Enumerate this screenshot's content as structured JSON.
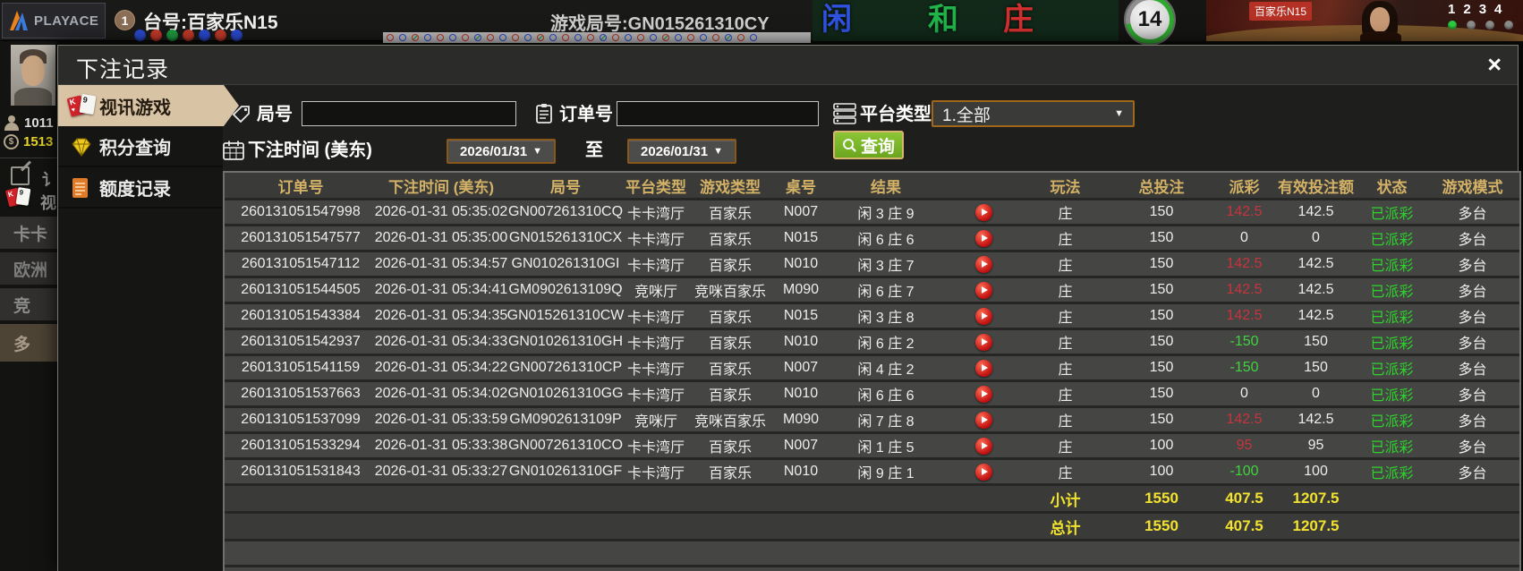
{
  "top_bar": {
    "brand": "PLAYACE",
    "round_badge": "1",
    "table_label": "台号:百家乐N15",
    "game_round_label": "游戏局号:GN015261310CY",
    "bet_zones": [
      {
        "label": "闲",
        "color": "#2f52e0"
      },
      {
        "label": "和",
        "color": "#21b24a"
      },
      {
        "label": "庄",
        "color": "#d32f2f"
      }
    ],
    "timer_value": "14",
    "video": {
      "table_tag": "百家乐N15",
      "seat_numbers": [
        "1",
        "2",
        "3",
        "4"
      ]
    }
  },
  "side_strip": {
    "user_id": "1011",
    "balance": "1513",
    "note_fragment": "讠",
    "video_menu_fragment": "视",
    "menu_items": [
      "卡卡",
      "欧洲",
      "竞",
      "多"
    ]
  },
  "icons": {
    "card_face_1": "K",
    "card_suit_1": "♥",
    "card_face_2": "9",
    "currency_glyph": "$",
    "caret_glyph": "▼"
  },
  "modal": {
    "title": "下注记录",
    "close_glyph": "×",
    "nav": [
      {
        "label": "视讯游戏",
        "icon": "cards-icon",
        "active": true
      },
      {
        "label": "积分查询",
        "icon": "diamond-icon",
        "active": false
      },
      {
        "label": "额度记录",
        "icon": "document-icon",
        "active": false
      }
    ],
    "filters": {
      "round_no_label": "局号",
      "round_no_value": "",
      "order_no_label": "订单号",
      "order_no_value": "",
      "platform_label": "平台类型",
      "platform_value": "1.全部",
      "bet_time_label": "下注时间 (美东)",
      "date_from": "2026/01/31",
      "to_label": "至",
      "date_to": "2026/01/31",
      "search_label": "查询"
    },
    "table": {
      "headers": [
        "订单号",
        "下注时间 (美东)",
        "局号",
        "平台类型",
        "游戏类型",
        "桌号",
        "结果",
        "玩法",
        "总投注",
        "派彩",
        "有效投注额",
        "状态",
        "游戏模式"
      ],
      "rows": [
        {
          "order": "260131051547998",
          "time": "2026-01-31 05:35:02",
          "round": "GN007261310CQ",
          "platform": "卡卡湾厅",
          "game": "百家乐",
          "table": "N007",
          "result": "闲 3 庄 9",
          "play": "庄",
          "total": "150",
          "payout": "142.5",
          "payout_type": "win",
          "valid": "142.5",
          "status": "已派彩",
          "mode": "多台"
        },
        {
          "order": "260131051547577",
          "time": "2026-01-31 05:35:00",
          "round": "GN015261310CX",
          "platform": "卡卡湾厅",
          "game": "百家乐",
          "table": "N015",
          "result": "闲 6 庄 6",
          "play": "庄",
          "total": "150",
          "payout": "0",
          "payout_type": "push",
          "valid": "0",
          "status": "已派彩",
          "mode": "多台"
        },
        {
          "order": "260131051547112",
          "time": "2026-01-31 05:34:57",
          "round": "GN010261310GI",
          "platform": "卡卡湾厅",
          "game": "百家乐",
          "table": "N010",
          "result": "闲 3 庄 7",
          "play": "庄",
          "total": "150",
          "payout": "142.5",
          "payout_type": "win",
          "valid": "142.5",
          "status": "已派彩",
          "mode": "多台"
        },
        {
          "order": "260131051544505",
          "time": "2026-01-31 05:34:41",
          "round": "GM0902613109Q",
          "platform": "竞咪厅",
          "game": "竞咪百家乐",
          "table": "M090",
          "result": "闲 6 庄 7",
          "play": "庄",
          "total": "150",
          "payout": "142.5",
          "payout_type": "win",
          "valid": "142.5",
          "status": "已派彩",
          "mode": "多台"
        },
        {
          "order": "260131051543384",
          "time": "2026-01-31 05:34:35",
          "round": "GN015261310CW",
          "platform": "卡卡湾厅",
          "game": "百家乐",
          "table": "N015",
          "result": "闲 3 庄 8",
          "play": "庄",
          "total": "150",
          "payout": "142.5",
          "payout_type": "win",
          "valid": "142.5",
          "status": "已派彩",
          "mode": "多台"
        },
        {
          "order": "260131051542937",
          "time": "2026-01-31 05:34:33",
          "round": "GN010261310GH",
          "platform": "卡卡湾厅",
          "game": "百家乐",
          "table": "N010",
          "result": "闲 6 庄 2",
          "play": "庄",
          "total": "150",
          "payout": "-150",
          "payout_type": "lose",
          "valid": "150",
          "status": "已派彩",
          "mode": "多台"
        },
        {
          "order": "260131051541159",
          "time": "2026-01-31 05:34:22",
          "round": "GN007261310CP",
          "platform": "卡卡湾厅",
          "game": "百家乐",
          "table": "N007",
          "result": "闲 4 庄 2",
          "play": "庄",
          "total": "150",
          "payout": "-150",
          "payout_type": "lose",
          "valid": "150",
          "status": "已派彩",
          "mode": "多台"
        },
        {
          "order": "260131051537663",
          "time": "2026-01-31 05:34:02",
          "round": "GN010261310GG",
          "platform": "卡卡湾厅",
          "game": "百家乐",
          "table": "N010",
          "result": "闲 6 庄 6",
          "play": "庄",
          "total": "150",
          "payout": "0",
          "payout_type": "push",
          "valid": "0",
          "status": "已派彩",
          "mode": "多台"
        },
        {
          "order": "260131051537099",
          "time": "2026-01-31 05:33:59",
          "round": "GM0902613109P",
          "platform": "竞咪厅",
          "game": "竞咪百家乐",
          "table": "M090",
          "result": "闲 7 庄 8",
          "play": "庄",
          "total": "150",
          "payout": "142.5",
          "payout_type": "win",
          "valid": "142.5",
          "status": "已派彩",
          "mode": "多台"
        },
        {
          "order": "260131051533294",
          "time": "2026-01-31 05:33:38",
          "round": "GN007261310CO",
          "platform": "卡卡湾厅",
          "game": "百家乐",
          "table": "N007",
          "result": "闲 1 庄 5",
          "play": "庄",
          "total": "100",
          "payout": "95",
          "payout_type": "win",
          "valid": "95",
          "status": "已派彩",
          "mode": "多台"
        },
        {
          "order": "260131051531843",
          "time": "2026-01-31 05:33:27",
          "round": "GN010261310GF",
          "platform": "卡卡湾厅",
          "game": "百家乐",
          "table": "N010",
          "result": "闲 9 庄 1",
          "play": "庄",
          "total": "100",
          "payout": "-100",
          "payout_type": "lose",
          "valid": "100",
          "status": "已派彩",
          "mode": "多台"
        }
      ],
      "subtotal": {
        "label": "小计",
        "total": "1550",
        "payout": "407.5",
        "valid": "1207.5"
      },
      "grand_total": {
        "label": "总计",
        "total": "1550",
        "payout": "407.5",
        "valid": "1207.5"
      }
    }
  }
}
